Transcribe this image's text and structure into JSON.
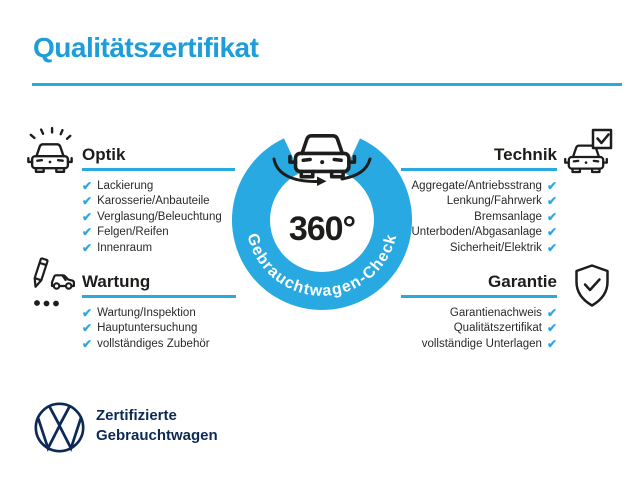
{
  "title": "Qualitätszertifikat",
  "colors": {
    "accent": "#29a9e1",
    "heading": "#1d9ed9",
    "ink": "#1d1d1b",
    "navy": "#0d2a55"
  },
  "center": {
    "value": "360°",
    "ring_label": "Gebrauchtwagen-Check"
  },
  "icons": {
    "check_glyph": "✔",
    "optik_icon": "car-front-sparkle-icon",
    "wartung_icon": "pencil-car-checklist-icon",
    "technik_icon": "car-front-checkbox-icon",
    "garantie_icon": "shield-check-icon",
    "center_icon": "rotating-car-icon",
    "logo": "vw-logo"
  },
  "sections": {
    "optik": {
      "label": "Optik",
      "items": [
        "Lackierung",
        "Karosserie/Anbauteile",
        "Verglasung/Beleuchtung",
        "Felgen/Reifen",
        "Innenraum"
      ]
    },
    "wartung": {
      "label": "Wartung",
      "items": [
        "Wartung/Inspektion",
        "Hauptuntersuchung",
        "vollständiges Zubehör"
      ]
    },
    "technik": {
      "label": "Technik",
      "items": [
        "Aggregate/Antriebsstrang",
        "Lenkung/Fahrwerk",
        "Bremsanlage",
        "Unterboden/Abgasanlage",
        "Sicherheit/Elektrik"
      ]
    },
    "garantie": {
      "label": "Garantie",
      "items": [
        "Garantienachweis",
        "Qualitätszertifikat",
        "vollständige Unterlagen"
      ]
    }
  },
  "footer": {
    "line1": "Zertifizierte",
    "line2": "Gebrauchtwagen"
  }
}
